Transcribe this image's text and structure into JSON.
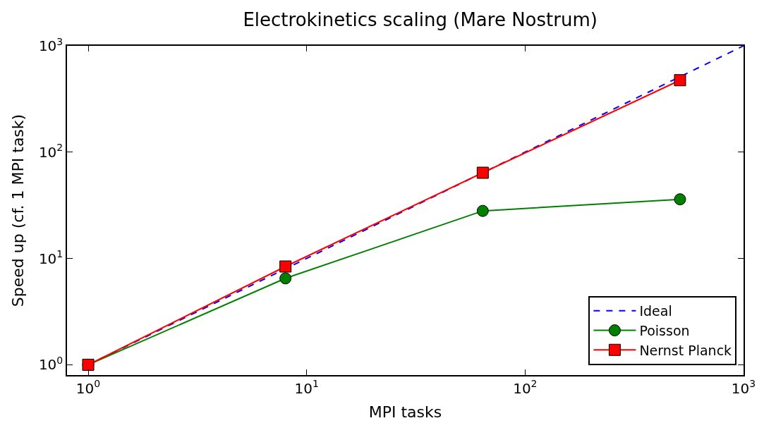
{
  "chart_data": {
    "type": "line",
    "title": "Electrokinetics scaling (Mare Nostrum)",
    "xlabel": "MPI tasks",
    "ylabel": "Speed up (cf. 1 MPI task)",
    "log": "xy",
    "legend": "bottom right",
    "xlim": [
      0.8,
      1000
    ],
    "ylim": [
      0.8,
      1000
    ],
    "xticks": [
      {
        "value": 1,
        "label": "10$^{0}$"
      },
      {
        "value": 10,
        "label": "10$^{1}$"
      },
      {
        "value": 100,
        "label": "10$^{2}$"
      },
      {
        "value": 1000,
        "label": "10$^{3}$"
      }
    ],
    "yticks": [
      {
        "value": 1,
        "label": "10$^{0}$"
      },
      {
        "value": 10,
        "label": "10$^{1}$"
      },
      {
        "value": 100,
        "label": "10$^{2}$"
      },
      {
        "value": 1000,
        "label": "10$^{3}$"
      }
    ],
    "series": [
      {
        "name": "Ideal",
        "color": "#0000ff",
        "x": [
          1,
          1000
        ],
        "values": [
          1,
          1000
        ],
        "line_style": "dashed",
        "marker": "none"
      },
      {
        "name": "Poisson",
        "color": "#008000",
        "x": [
          1,
          8,
          64,
          512
        ],
        "values": [
          1,
          6.5,
          28,
          36
        ],
        "line_style": "solid",
        "marker": "circle"
      },
      {
        "name": "Nernst Planck",
        "color": "#ff0000",
        "x": [
          1,
          8,
          64,
          512
        ],
        "values": [
          1,
          8.4,
          64,
          475
        ],
        "line_style": "solid",
        "marker": "square"
      }
    ]
  }
}
